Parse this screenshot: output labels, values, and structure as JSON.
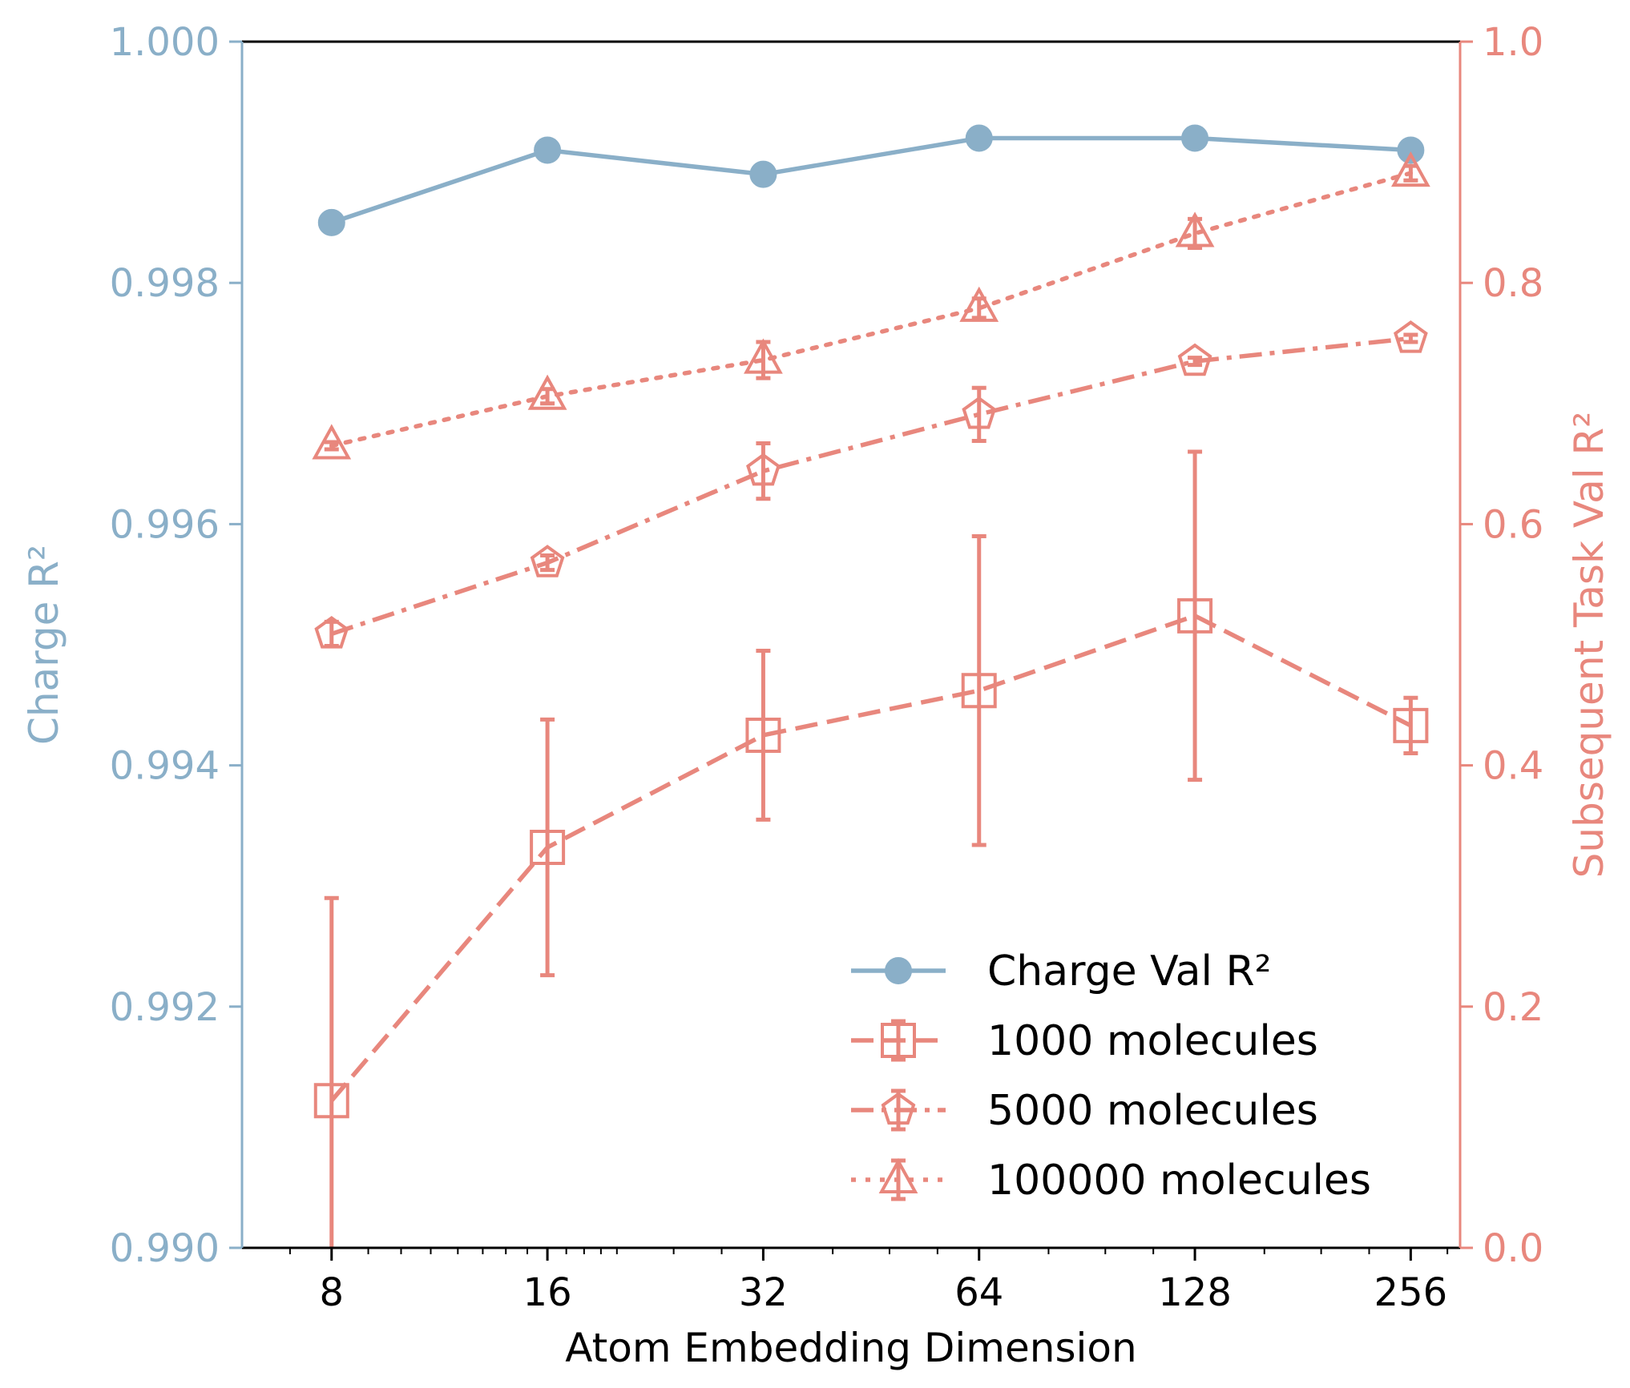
{
  "colors": {
    "left_axis": "#8aafc8",
    "right_axis": "#e8877d",
    "charge_series": "#8aafc8",
    "subsequent_series": "#e8877d",
    "frame": "#000000"
  },
  "chart_data": {
    "type": "line",
    "x_scale": "log2",
    "xlabel": "Atom Embedding Dimension",
    "x": [
      8,
      16,
      32,
      64,
      128,
      256
    ],
    "x_tick_labels": [
      "8",
      "16",
      "32",
      "64",
      "128",
      "256"
    ],
    "left_axis": {
      "label": "Charge R²",
      "ylim": [
        0.99,
        1.0
      ],
      "ticks": [
        0.99,
        0.992,
        0.994,
        0.996,
        0.998,
        1.0
      ],
      "tick_labels": [
        "0.990",
        "0.992",
        "0.994",
        "0.996",
        "0.998",
        "1.000"
      ]
    },
    "right_axis": {
      "label": "Subsequent Task Val R²",
      "ylim": [
        0.0,
        1.0
      ],
      "ticks": [
        0.0,
        0.2,
        0.4,
        0.6,
        0.8,
        1.0
      ],
      "tick_labels": [
        "0.0",
        "0.2",
        "0.4",
        "0.6",
        "0.8",
        "1.0"
      ]
    },
    "legend_position": "bottom-right",
    "series": [
      {
        "name": "Charge Val R²",
        "axis": "left",
        "marker": "circle",
        "linestyle": "solid",
        "values": [
          0.9985,
          0.9991,
          0.9989,
          0.9992,
          0.9992,
          0.9991
        ]
      },
      {
        "name": "1000 molecules",
        "axis": "right",
        "marker": "square",
        "linestyle": "dashed",
        "values": [
          0.122,
          0.332,
          0.425,
          0.462,
          0.524,
          0.433
        ],
        "errors": [
          0.168,
          0.106,
          0.07,
          0.128,
          0.136,
          0.023
        ]
      },
      {
        "name": "5000 molecules",
        "axis": "right",
        "marker": "pentagon",
        "linestyle": "dashdot",
        "values": [
          0.509,
          0.568,
          0.644,
          0.691,
          0.735,
          0.754
        ],
        "errors": [
          0.01,
          0.006,
          0.023,
          0.022,
          0.003,
          0.003
        ]
      },
      {
        "name": "100000 molecules",
        "axis": "right",
        "marker": "triangle",
        "linestyle": "dotted",
        "values": [
          0.665,
          0.706,
          0.736,
          0.779,
          0.841,
          0.891
        ],
        "errors": [
          0.003,
          0.006,
          0.015,
          0.008,
          0.012,
          0.006
        ]
      }
    ]
  }
}
